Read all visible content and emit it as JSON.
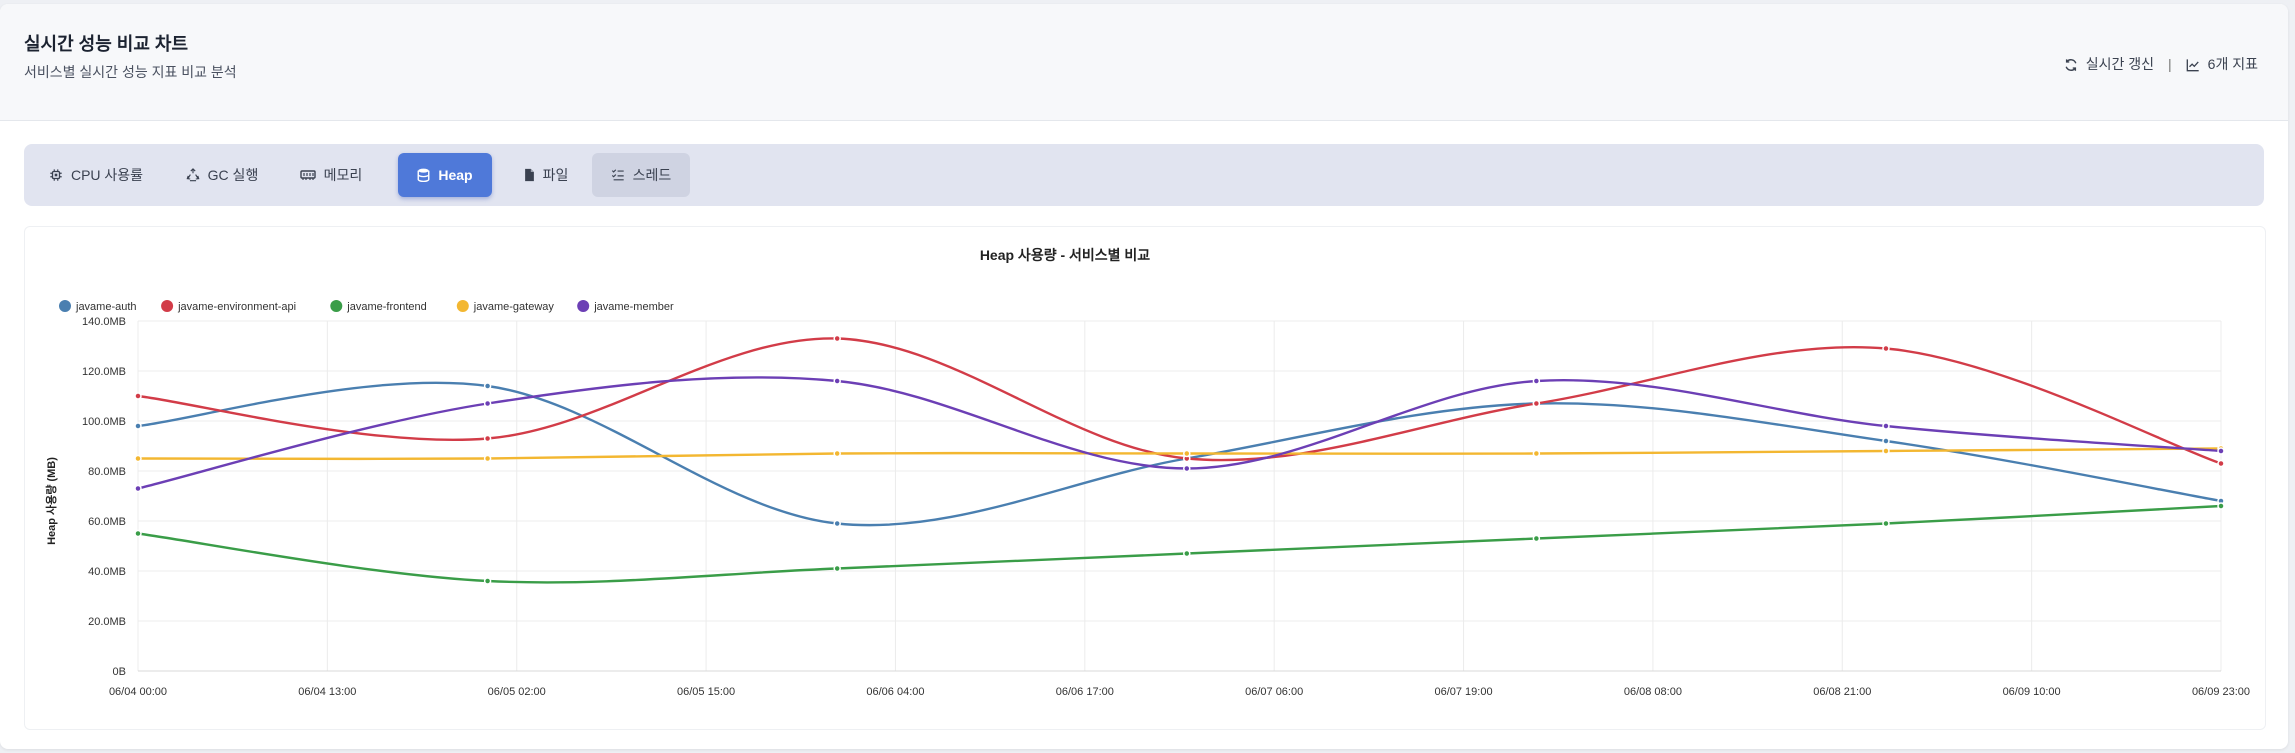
{
  "header": {
    "title": "실시간 성능 비교 차트",
    "subtitle": "서비스별 실시간 성능 지표 비교 분석",
    "refresh_label": "실시간 갱신",
    "separator": "|",
    "metrics_count_label": "6개 지표"
  },
  "tabs": [
    {
      "label": "CPU 사용률",
      "icon": "cpu-icon"
    },
    {
      "label": "GC 실행",
      "icon": "recycle-icon"
    },
    {
      "label": "메모리",
      "icon": "memory-icon"
    },
    {
      "label": "Heap",
      "icon": "database-icon",
      "active": true
    },
    {
      "label": "파일",
      "icon": "file-icon"
    },
    {
      "label": "스레드",
      "icon": "list-check-icon"
    }
  ],
  "colors": {
    "accent": "#4f79d9",
    "javame-auth": "#4a7fb0",
    "javame-environment-api": "#d23c48",
    "javame-frontend": "#3a9d48",
    "javame-gateway": "#f3b731",
    "javame-member": "#6c3fb5"
  },
  "chart_data": {
    "type": "line",
    "title": "Heap 사용량 - 서비스별 비교",
    "xlabel": "",
    "ylabel": "Heap 사용량 (MB)",
    "ylim": [
      0,
      140
    ],
    "y_ticks": [
      "0B",
      "20.0MB",
      "40.0MB",
      "60.0MB",
      "80.0MB",
      "100.0MB",
      "120.0MB",
      "140.0MB"
    ],
    "y_tick_values": [
      0,
      20,
      40,
      60,
      80,
      100,
      120,
      140
    ],
    "x_ticks": [
      "06/04 00:00",
      "06/04 13:00",
      "06/05 02:00",
      "06/05 15:00",
      "06/06 04:00",
      "06/06 17:00",
      "06/07 06:00",
      "06/07 19:00",
      "06/08 08:00",
      "06/08 21:00",
      "06/09 10:00",
      "06/09 23:00"
    ],
    "x_tick_hours": [
      0,
      13,
      26,
      39,
      52,
      65,
      78,
      91,
      104,
      117,
      130,
      143
    ],
    "x_range_hours": [
      0,
      143
    ],
    "legend_position": "top-left",
    "series": [
      {
        "name": "javame-auth",
        "x_hours": [
          0,
          24,
          48,
          72,
          96,
          120,
          143
        ],
        "values": [
          98,
          114,
          59,
          85,
          107,
          92,
          68
        ]
      },
      {
        "name": "javame-environment-api",
        "x_hours": [
          0,
          24,
          48,
          72,
          96,
          120,
          143
        ],
        "values": [
          110,
          93,
          133,
          85,
          107,
          129,
          83
        ]
      },
      {
        "name": "javame-frontend",
        "x_hours": [
          0,
          24,
          48,
          72,
          96,
          120,
          143
        ],
        "values": [
          55,
          36,
          41,
          47,
          53,
          59,
          66
        ]
      },
      {
        "name": "javame-gateway",
        "x_hours": [
          0,
          24,
          48,
          72,
          96,
          120,
          143
        ],
        "values": [
          85,
          85,
          87,
          87,
          87,
          88,
          89
        ]
      },
      {
        "name": "javame-member",
        "x_hours": [
          0,
          24,
          48,
          72,
          96,
          120,
          143
        ],
        "values": [
          73,
          107,
          116,
          81,
          116,
          98,
          88
        ]
      }
    ]
  }
}
